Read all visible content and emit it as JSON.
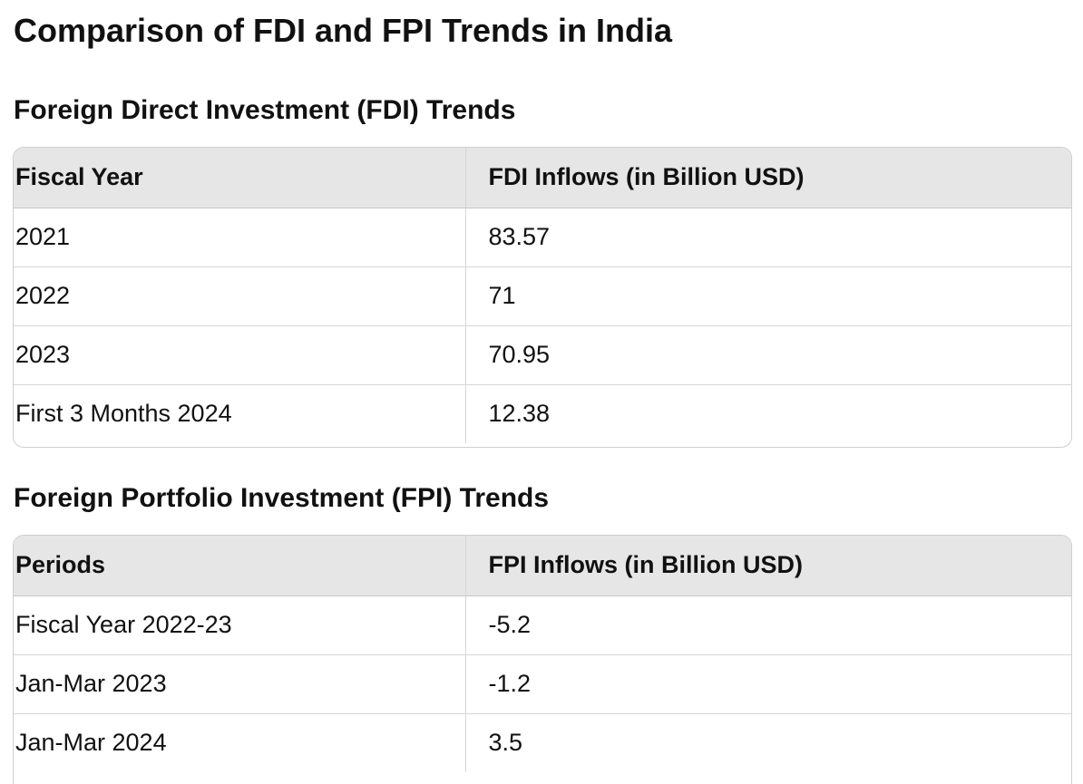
{
  "page": {
    "title": "Comparison of FDI and FPI Trends in India"
  },
  "fdi": {
    "heading": "Foreign Direct Investment (FDI) Trends",
    "columns": [
      "Fiscal Year",
      "FDI Inflows (in Billion USD)"
    ],
    "rows": [
      [
        "2021",
        "83.57"
      ],
      [
        "2022",
        "71"
      ],
      [
        "2023",
        "70.95"
      ],
      [
        "First 3 Months 2024",
        "12.38"
      ]
    ]
  },
  "fpi": {
    "heading": "Foreign Portfolio Investment (FPI) Trends",
    "columns": [
      "Periods",
      "FPI Inflows (in Billion USD)"
    ],
    "rows": [
      [
        "Fiscal Year 2022-23",
        "-5.2"
      ],
      [
        "Jan-Mar 2023",
        "-1.2"
      ],
      [
        "Jan-Mar 2024",
        "3.5"
      ]
    ]
  }
}
